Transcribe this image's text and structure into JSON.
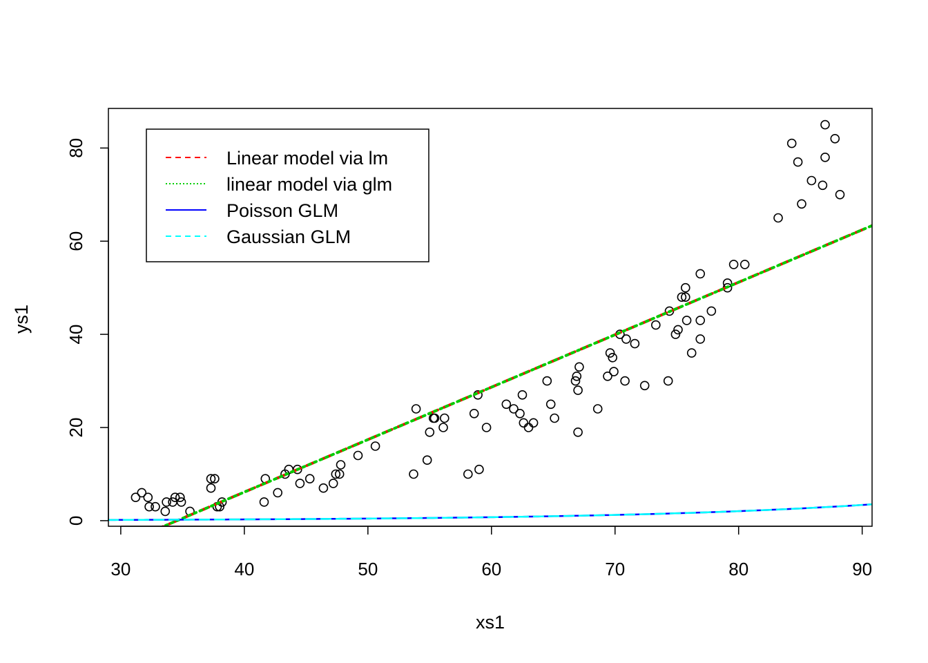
{
  "chart_data": {
    "type": "scatter",
    "xlabel": "xs1",
    "ylabel": "ys1",
    "xlim": [
      29,
      90.8
    ],
    "ylim": [
      -1.2,
      88.5
    ],
    "x_ticks": [
      "30",
      "40",
      "50",
      "60",
      "70",
      "80",
      "90"
    ],
    "y_ticks": [
      "0",
      "20",
      "40",
      "60",
      "80"
    ],
    "x_tick_values": [
      30,
      40,
      50,
      60,
      70,
      80,
      90
    ],
    "y_tick_values": [
      0,
      20,
      40,
      60,
      80
    ],
    "legend_position": "top-left",
    "points": [
      [
        31.2,
        5
      ],
      [
        31.7,
        6
      ],
      [
        32.2,
        5
      ],
      [
        32.3,
        3
      ],
      [
        32.8,
        3
      ],
      [
        33.6,
        2
      ],
      [
        33.7,
        4
      ],
      [
        34.2,
        4
      ],
      [
        34.4,
        5
      ],
      [
        34.8,
        5
      ],
      [
        34.9,
        4
      ],
      [
        35.6,
        2
      ],
      [
        37.3,
        7
      ],
      [
        37.3,
        9
      ],
      [
        37.6,
        9
      ],
      [
        37.8,
        3
      ],
      [
        38.0,
        3
      ],
      [
        38.2,
        4
      ],
      [
        41.6,
        4
      ],
      [
        41.7,
        9
      ],
      [
        42.7,
        6
      ],
      [
        43.3,
        10
      ],
      [
        43.6,
        11
      ],
      [
        44.3,
        11
      ],
      [
        44.5,
        8
      ],
      [
        45.3,
        9
      ],
      [
        46.4,
        7
      ],
      [
        47.2,
        8
      ],
      [
        47.4,
        10
      ],
      [
        47.7,
        10
      ],
      [
        47.8,
        12
      ],
      [
        49.2,
        14
      ],
      [
        50.6,
        16
      ],
      [
        53.7,
        10
      ],
      [
        53.9,
        24
      ],
      [
        54.8,
        13
      ],
      [
        55.0,
        19
      ],
      [
        55.3,
        22
      ],
      [
        55.4,
        22
      ],
      [
        56.1,
        20
      ],
      [
        56.2,
        22
      ],
      [
        58.1,
        10
      ],
      [
        58.6,
        23
      ],
      [
        58.9,
        27
      ],
      [
        59.0,
        11
      ],
      [
        59.6,
        20
      ],
      [
        61.2,
        25
      ],
      [
        61.8,
        24
      ],
      [
        62.3,
        23
      ],
      [
        62.5,
        27
      ],
      [
        62.6,
        21
      ],
      [
        63.0,
        20
      ],
      [
        63.4,
        21
      ],
      [
        64.5,
        30
      ],
      [
        64.8,
        25
      ],
      [
        65.1,
        22
      ],
      [
        66.8,
        30
      ],
      [
        66.9,
        31
      ],
      [
        67.0,
        28
      ],
      [
        67.0,
        19
      ],
      [
        67.1,
        33
      ],
      [
        68.6,
        24
      ],
      [
        69.4,
        31
      ],
      [
        69.6,
        36
      ],
      [
        69.8,
        35
      ],
      [
        69.9,
        32
      ],
      [
        70.4,
        40
      ],
      [
        70.8,
        30
      ],
      [
        70.9,
        39
      ],
      [
        71.6,
        38
      ],
      [
        72.4,
        29
      ],
      [
        73.3,
        42
      ],
      [
        74.3,
        30
      ],
      [
        74.4,
        45
      ],
      [
        74.9,
        40
      ],
      [
        75.1,
        41
      ],
      [
        75.4,
        48
      ],
      [
        75.7,
        50
      ],
      [
        75.7,
        48
      ],
      [
        75.8,
        43
      ],
      [
        76.2,
        36
      ],
      [
        76.9,
        53
      ],
      [
        76.9,
        43
      ],
      [
        76.9,
        39
      ],
      [
        77.8,
        45
      ],
      [
        79.1,
        51
      ],
      [
        79.1,
        50
      ],
      [
        79.6,
        55
      ],
      [
        80.5,
        55
      ],
      [
        83.2,
        65
      ],
      [
        84.3,
        81
      ],
      [
        84.8,
        77
      ],
      [
        85.1,
        68
      ],
      [
        85.9,
        73
      ],
      [
        86.8,
        72
      ],
      [
        87.0,
        85
      ],
      [
        87.0,
        78
      ],
      [
        87.8,
        82
      ],
      [
        88.2,
        70
      ]
    ],
    "series": [
      {
        "name": "Linear model via lm",
        "kind": "linear",
        "intercept": -38.9,
        "slope": 1.126,
        "color": "#FF0000",
        "dash": "14,10",
        "width": 4
      },
      {
        "name": "linear model via glm",
        "kind": "linear",
        "intercept": -38.9,
        "slope": 1.126,
        "color": "#00CD00",
        "dash": "3,6",
        "width": 4
      },
      {
        "name": "Poisson GLM",
        "kind": "exp",
        "a": 0.03655,
        "b": 0.05027,
        "color": "#0000FF",
        "dash": "",
        "width": 2.5
      },
      {
        "name": "Gaussian GLM",
        "kind": "exp",
        "a": 0.03655,
        "b": 0.05027,
        "color": "#00FFFF",
        "dash": "14,8",
        "width": 2.5
      }
    ]
  }
}
